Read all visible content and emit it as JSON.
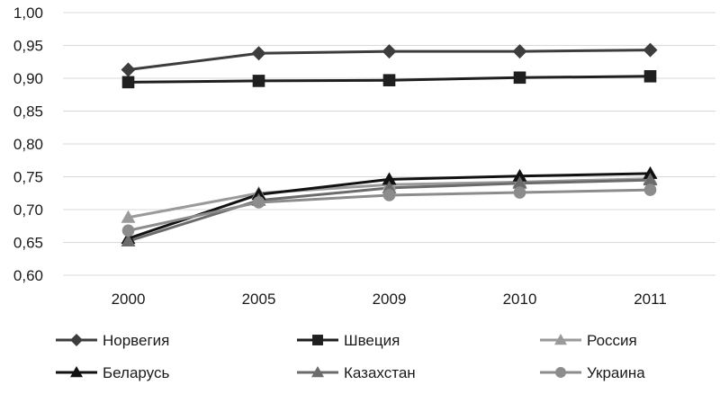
{
  "chart_data": {
    "type": "line",
    "categories": [
      "2000",
      "2005",
      "2009",
      "2010",
      "2011"
    ],
    "ylim": [
      0.6,
      1.0
    ],
    "yticks": [
      "0,60",
      "0,65",
      "0,70",
      "0,75",
      "0,80",
      "0,85",
      "0,90",
      "0,95",
      "1,00"
    ],
    "grid": true,
    "legend": "bottom",
    "series": [
      {
        "name": "Норвегия",
        "values": [
          0.913,
          0.938,
          0.941,
          0.941,
          0.943
        ],
        "color": "#3d3d3d",
        "marker": "diamond"
      },
      {
        "name": "Швеция",
        "values": [
          0.894,
          0.896,
          0.897,
          0.901,
          0.903
        ],
        "color": "#1f1f1f",
        "marker": "square"
      },
      {
        "name": "Россия",
        "values": [
          0.688,
          0.725,
          0.738,
          0.742,
          0.747
        ],
        "color": "#9a9a9a",
        "marker": "triangle"
      },
      {
        "name": "Беларусь",
        "values": [
          0.656,
          0.723,
          0.746,
          0.751,
          0.755
        ],
        "color": "#111111",
        "marker": "triangle"
      },
      {
        "name": "Казахстан",
        "values": [
          0.652,
          0.714,
          0.733,
          0.74,
          0.745
        ],
        "color": "#6b6b6b",
        "marker": "triangle"
      },
      {
        "name": "Украина",
        "values": [
          0.668,
          0.711,
          0.722,
          0.726,
          0.73
        ],
        "color": "#8c8c8c",
        "marker": "circle"
      }
    ]
  }
}
